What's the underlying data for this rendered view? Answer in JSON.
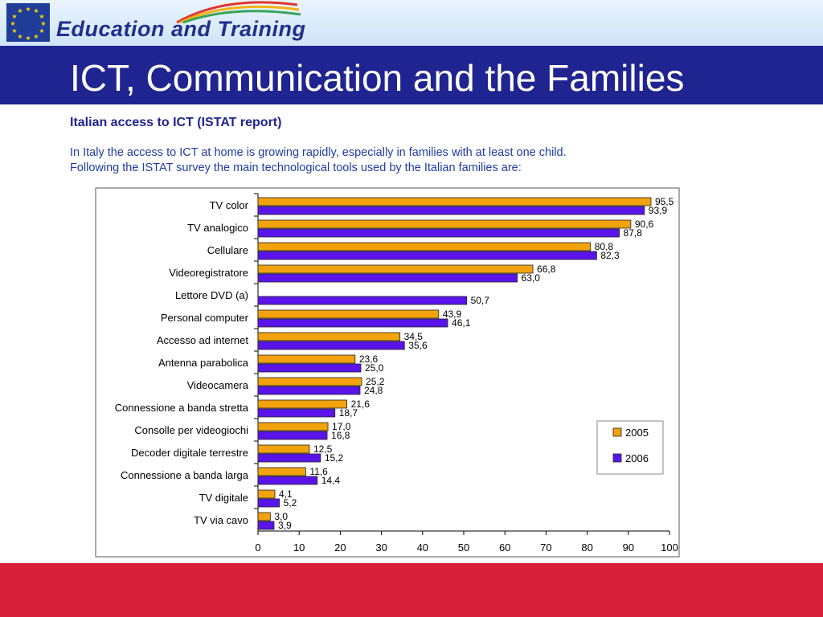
{
  "header": {
    "brand": "Education and Training",
    "title": "ICT, Communication and the Families"
  },
  "content": {
    "subtitle": "Italian access to ICT (ISTAT report)",
    "intro_line1": "In Italy the access to ICT at home is growing rapidly, especially in families with at least one child.",
    "intro_line2": "Following  the ISTAT survey the main technological tools used by the Italian families are:"
  },
  "colors": {
    "series_2005": "#f2a20c",
    "series_2006": "#5a14ea",
    "header_blue": "#1f2491",
    "footer_red": "#d81f3a"
  },
  "chart_data": {
    "type": "bar",
    "orientation": "horizontal",
    "categories": [
      "TV color",
      "TV analogico",
      "Cellulare",
      "Videoregistratore",
      "Lettore DVD (a)",
      "Personal computer",
      "Accesso ad internet",
      "Antenna parabolica",
      "Videocamera",
      "Connessione a banda stretta",
      "Consolle per videogiochi",
      "Decoder digitale terrestre",
      "Connessione a banda larga",
      "TV digitale",
      "TV via cavo"
    ],
    "series": [
      {
        "name": "2005",
        "values": [
          95.5,
          90.6,
          80.8,
          66.8,
          null,
          43.9,
          34.5,
          23.6,
          25.2,
          21.6,
          17.0,
          12.5,
          11.6,
          4.1,
          3.0
        ],
        "labels": [
          "95,5",
          "90,6",
          "80,8",
          "66,8",
          "",
          "43,9",
          "34,5",
          "23,6",
          "25,2",
          "21,6",
          "17,0",
          "12,5",
          "11,6",
          "4,1",
          "3,0"
        ]
      },
      {
        "name": "2006",
        "values": [
          93.9,
          87.8,
          82.3,
          63.0,
          50.7,
          46.1,
          35.6,
          25.0,
          24.8,
          18.7,
          16.8,
          15.2,
          14.4,
          5.2,
          3.9
        ],
        "labels": [
          "93,9",
          "87,8",
          "82,3",
          "63,0",
          "50,7",
          "46,1",
          "35,6",
          "25,0",
          "24,8",
          "18,7",
          "16,8",
          "15,2",
          "14,4",
          "5,2",
          "3,9"
        ]
      }
    ],
    "xlim": [
      0,
      100
    ],
    "xticks": [
      0,
      10,
      20,
      30,
      40,
      50,
      60,
      70,
      80,
      90,
      100
    ],
    "grid": false,
    "legend_position": "bottom-right"
  }
}
